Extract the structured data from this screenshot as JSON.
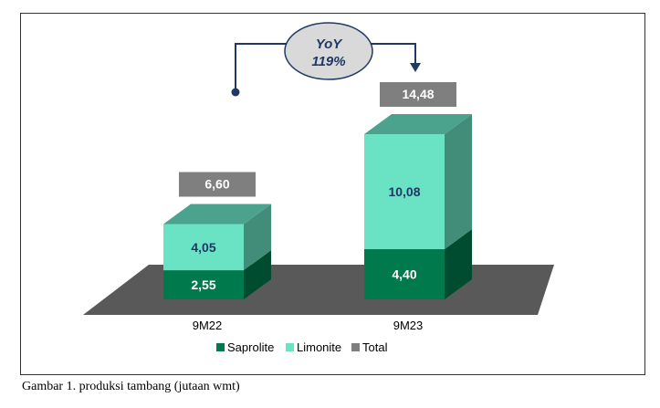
{
  "caption": "Gambar 1. produksi tambang (jutaan wmt)",
  "yoy": {
    "line1": "YoY",
    "line2": "119%"
  },
  "colors": {
    "saprolite": "#007a4d",
    "limonite": "#69e3c4",
    "total": "#7f7f7f",
    "floor": "#595959",
    "label_text": "#1f3864",
    "total_label_text": "#ffffff"
  },
  "chart_data": {
    "type": "bar",
    "stacked": true,
    "categories": [
      "9M22",
      "9M23"
    ],
    "series": [
      {
        "name": "Saprolite",
        "values": [
          2.55,
          4.4
        ],
        "labels": [
          "2,55",
          "4,40"
        ]
      },
      {
        "name": "Limonite",
        "values": [
          4.05,
          10.08
        ],
        "labels": [
          "4,05",
          "10,08"
        ]
      }
    ],
    "totals": {
      "name": "Total",
      "values": [
        6.6,
        14.48
      ],
      "labels": [
        "6,60",
        "14,48"
      ]
    },
    "legend": {
      "position": "bottom",
      "entries": [
        "Saprolite",
        "Limonite",
        "Total"
      ]
    },
    "grid": false,
    "title": "",
    "xlabel": "",
    "ylabel": ""
  }
}
